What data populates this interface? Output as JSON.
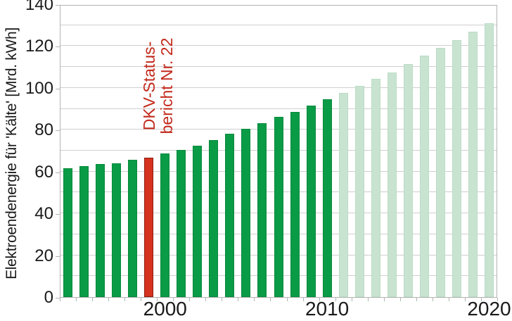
{
  "chart_data": {
    "type": "bar",
    "title": "",
    "xlabel": "",
    "ylabel": "Elektroendenergie für 'Kälte' [Mrd. kWh]",
    "ylim": [
      0,
      140
    ],
    "y_major_ticks": [
      0,
      20,
      40,
      60,
      80,
      100,
      120,
      140
    ],
    "y_grid_step": 10,
    "grid": true,
    "legend_position": "none",
    "x_major_tick_labels": [
      {
        "label": "2000",
        "year": 2000
      },
      {
        "label": "2010",
        "year": 2010
      },
      {
        "label": "2020",
        "year": 2020
      }
    ],
    "colors": {
      "actual": "#0a9b46",
      "highlight": "#d5321f",
      "forecast": "#c8e4d1",
      "annotation_text": "#c22a1c",
      "gridline": "#cfcfcf",
      "axis": "#b3b3b3"
    },
    "annotation": {
      "line1": "DKV-Status-",
      "line2": "bericht Nr. 22",
      "target_year": 1999
    },
    "bars": [
      {
        "year": 1994,
        "value": 61.5,
        "kind": "actual"
      },
      {
        "year": 1995,
        "value": 62.5,
        "kind": "actual"
      },
      {
        "year": 1996,
        "value": 63.5,
        "kind": "actual"
      },
      {
        "year": 1997,
        "value": 64.0,
        "kind": "actual"
      },
      {
        "year": 1998,
        "value": 65.5,
        "kind": "actual"
      },
      {
        "year": 1999,
        "value": 66.5,
        "kind": "highlight"
      },
      {
        "year": 2000,
        "value": 68.5,
        "kind": "actual"
      },
      {
        "year": 2001,
        "value": 70.5,
        "kind": "actual"
      },
      {
        "year": 2002,
        "value": 72.5,
        "kind": "actual"
      },
      {
        "year": 2003,
        "value": 75.0,
        "kind": "actual"
      },
      {
        "year": 2004,
        "value": 78.0,
        "kind": "actual"
      },
      {
        "year": 2005,
        "value": 80.5,
        "kind": "actual"
      },
      {
        "year": 2006,
        "value": 83.0,
        "kind": "actual"
      },
      {
        "year": 2007,
        "value": 86.0,
        "kind": "actual"
      },
      {
        "year": 2008,
        "value": 88.5,
        "kind": "actual"
      },
      {
        "year": 2009,
        "value": 91.5,
        "kind": "actual"
      },
      {
        "year": 2010,
        "value": 94.5,
        "kind": "actual"
      },
      {
        "year": 2011,
        "value": 97.5,
        "kind": "forecast"
      },
      {
        "year": 2012,
        "value": 101.0,
        "kind": "forecast"
      },
      {
        "year": 2013,
        "value": 104.5,
        "kind": "forecast"
      },
      {
        "year": 2014,
        "value": 107.5,
        "kind": "forecast"
      },
      {
        "year": 2015,
        "value": 111.5,
        "kind": "forecast"
      },
      {
        "year": 2016,
        "value": 115.5,
        "kind": "forecast"
      },
      {
        "year": 2017,
        "value": 119.0,
        "kind": "forecast"
      },
      {
        "year": 2018,
        "value": 123.0,
        "kind": "forecast"
      },
      {
        "year": 2019,
        "value": 127.0,
        "kind": "forecast"
      },
      {
        "year": 2020,
        "value": 131.0,
        "kind": "forecast"
      }
    ]
  }
}
